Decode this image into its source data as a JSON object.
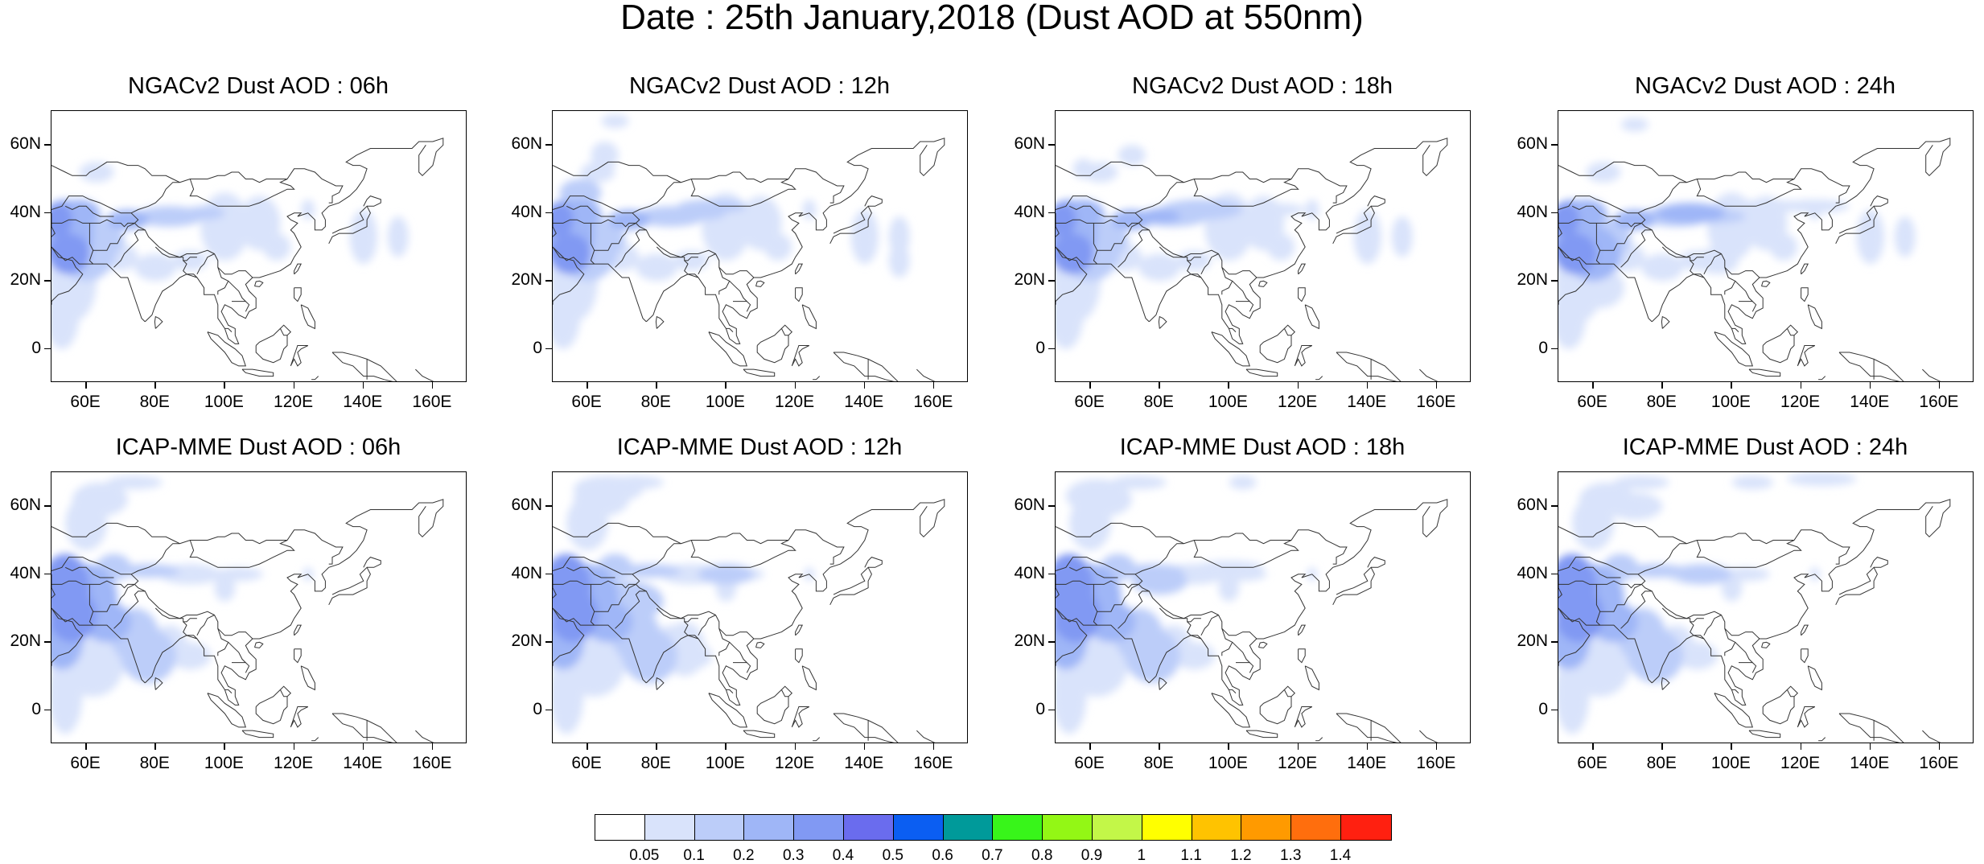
{
  "title": "Date : 25th January,2018 (Dust AOD at 550nm)",
  "panels": [
    {
      "title": "NGACv2 Dust AOD : 06h",
      "model": "NGACv2",
      "hour": "06h",
      "intensity": 1.0
    },
    {
      "title": "NGACv2 Dust AOD : 12h",
      "model": "NGACv2",
      "hour": "12h",
      "intensity": 1.05
    },
    {
      "title": "NGACv2 Dust AOD : 18h",
      "model": "NGACv2",
      "hour": "18h",
      "intensity": 1.05
    },
    {
      "title": "NGACv2 Dust AOD : 24h",
      "model": "NGACv2",
      "hour": "24h",
      "intensity": 1.1
    },
    {
      "title": "ICAP-MME Dust AOD : 06h",
      "model": "ICAP-MME",
      "hour": "06h",
      "intensity": 1.0
    },
    {
      "title": "ICAP-MME Dust AOD : 12h",
      "model": "ICAP-MME",
      "hour": "12h",
      "intensity": 1.05
    },
    {
      "title": "ICAP-MME Dust AOD : 18h",
      "model": "ICAP-MME",
      "hour": "18h",
      "intensity": 1.0
    },
    {
      "title": "ICAP-MME Dust AOD : 24h",
      "model": "ICAP-MME",
      "hour": "24h",
      "intensity": 1.0
    }
  ],
  "axes": {
    "lat_labels": [
      "60N",
      "40N",
      "20N",
      "0"
    ],
    "lat_values": [
      60,
      40,
      20,
      0
    ],
    "lon_labels": [
      "60E",
      "80E",
      "100E",
      "120E",
      "140E",
      "160E"
    ],
    "lon_values": [
      60,
      80,
      100,
      120,
      140,
      160
    ],
    "lon_range": [
      50,
      170
    ],
    "lat_range": [
      -10,
      70
    ]
  },
  "colorbar": {
    "labels": [
      "0.05",
      "0.1",
      "0.2",
      "0.3",
      "0.4",
      "0.5",
      "0.6",
      "0.7",
      "0.8",
      "0.9",
      "1",
      "1.1",
      "1.2",
      "1.3",
      "1.4"
    ],
    "colors": [
      "#ffffff",
      "#d9e3fb",
      "#bccdf9",
      "#9fb6f7",
      "#8199f3",
      "#6a6cee",
      "#0b5ef2",
      "#009a9a",
      "#38f51a",
      "#93f715",
      "#c3f748",
      "#ffff00",
      "#ffc300",
      "#ff9a00",
      "#ff6e0d",
      "#ff2010"
    ]
  }
}
